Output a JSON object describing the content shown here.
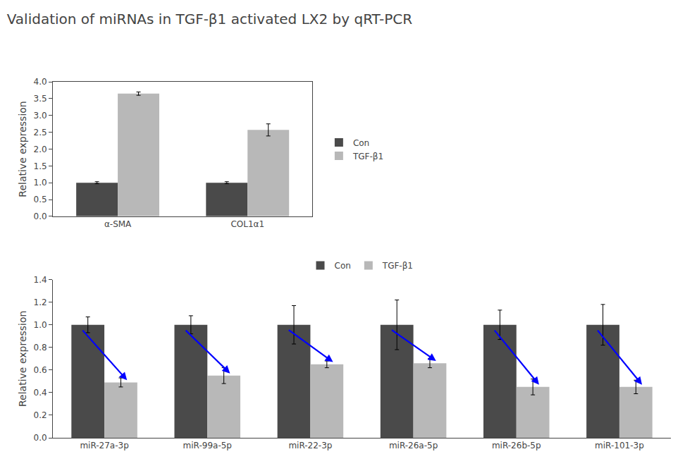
{
  "chart_data": [
    {
      "type": "bar",
      "title": "Validation of miRNAs in TGF-β1 activated LX2 by qRT-PCR",
      "categories": [
        "α-SMA",
        "COL1α1"
      ],
      "series": [
        {
          "name": "Con",
          "color": "#4a4a4a",
          "values": [
            1.0,
            1.0
          ],
          "errors": [
            0.03,
            0.03
          ]
        },
        {
          "name": "TGF-β1",
          "color": "#b8b8b8",
          "values": [
            3.65,
            2.57
          ],
          "errors": [
            0.05,
            0.18
          ]
        }
      ],
      "ylabel": "Relative expression",
      "ylim": [
        0,
        4.0
      ],
      "yticks": [
        {
          "value": 0,
          "label": "0.0"
        },
        0.5,
        {
          "value": 1,
          "label": "1.0"
        },
        1.5,
        {
          "value": 2,
          "label": "2.0"
        },
        2.5,
        {
          "value": 3,
          "label": "3.0"
        },
        3.5,
        {
          "value": 4,
          "label": "4.0"
        }
      ],
      "grid": false,
      "legend": "right"
    },
    {
      "type": "bar",
      "categories": [
        "miR-27a-3p",
        "miR-99a-5p",
        "miR-22-3p",
        "miR-26a-5p",
        "miR-26b-5p",
        "miR-101-3p"
      ],
      "series": [
        {
          "name": "Con",
          "color": "#4a4a4a",
          "values": [
            1.0,
            1.0,
            1.0,
            1.0,
            1.0,
            1.0
          ],
          "errors": [
            0.07,
            0.08,
            0.17,
            0.22,
            0.13,
            0.18
          ]
        },
        {
          "name": "TGF-β1",
          "color": "#b8b8b8",
          "values": [
            0.49,
            0.55,
            0.65,
            0.66,
            0.45,
            0.45
          ],
          "errors": [
            0.04,
            0.07,
            0.03,
            0.04,
            0.07,
            0.06
          ]
        }
      ],
      "ylabel": "Relative expression",
      "ylim": [
        0,
        1.4
      ],
      "yticks": [
        {
          "value": 0,
          "label": "0.0"
        },
        0.2,
        0.4,
        0.6,
        0.8,
        {
          "value": 1,
          "label": "1.0"
        },
        1.2,
        1.4
      ],
      "grid": false,
      "legend": "top",
      "annotations": [
        {
          "from": [
            0.78,
            0.96
          ],
          "to": [
            1.22,
            0.51
          ],
          "color": "blue"
        },
        {
          "from": [
            1.78,
            0.96
          ],
          "to": [
            2.22,
            0.57
          ],
          "color": "blue"
        },
        {
          "from": [
            2.78,
            0.96
          ],
          "to": [
            3.22,
            0.67
          ],
          "color": "blue"
        },
        {
          "from": [
            3.78,
            0.96
          ],
          "to": [
            4.22,
            0.68
          ],
          "color": "blue"
        },
        {
          "from": [
            4.78,
            0.96
          ],
          "to": [
            5.22,
            0.47
          ],
          "color": "blue"
        },
        {
          "from": [
            5.78,
            0.96
          ],
          "to": [
            6.22,
            0.47
          ],
          "color": "blue"
        }
      ]
    }
  ]
}
